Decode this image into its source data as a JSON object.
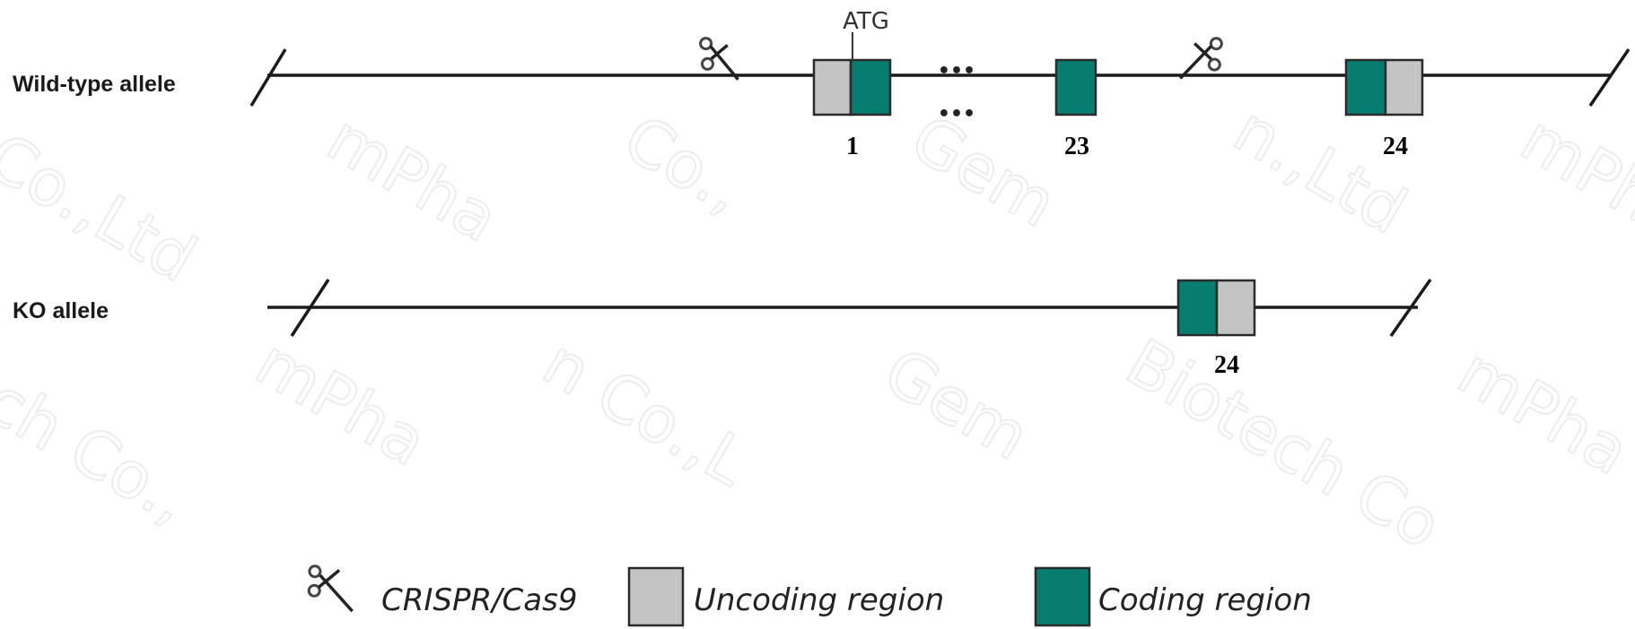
{
  "diagram": {
    "wild_type": {
      "label": "Wild-type allele",
      "start_codon": "ATG",
      "ellipsis": "•••",
      "exons": [
        {
          "number": "1",
          "regions": [
            "uncoding",
            "coding"
          ]
        },
        {
          "number": "23",
          "regions": [
            "coding"
          ]
        },
        {
          "number": "24",
          "regions": [
            "coding",
            "uncoding"
          ]
        }
      ]
    },
    "ko": {
      "label": "KO allele",
      "exons": [
        {
          "number": "24",
          "regions": [
            "coding",
            "uncoding"
          ]
        }
      ]
    },
    "legend": [
      {
        "icon": "scissors-icon",
        "label": "CRISPR/Cas9"
      },
      {
        "icon": "uncoding-swatch",
        "label": "Uncoding region"
      },
      {
        "icon": "coding-swatch",
        "label": "Coding region"
      }
    ],
    "watermark": [
      "Co.,Ltd",
      "mPha",
      "Co.,",
      "Gem",
      "n.,Ltd",
      "mPha",
      "ech Co.,",
      "mPha",
      "n Co.,L",
      "Gem",
      "Biotech Co",
      "mPha"
    ],
    "colors": {
      "coding": "#077d6f",
      "uncoding": "#c4c4c4",
      "line": "#1a1a1a",
      "outline": "#2a2a2a"
    }
  }
}
